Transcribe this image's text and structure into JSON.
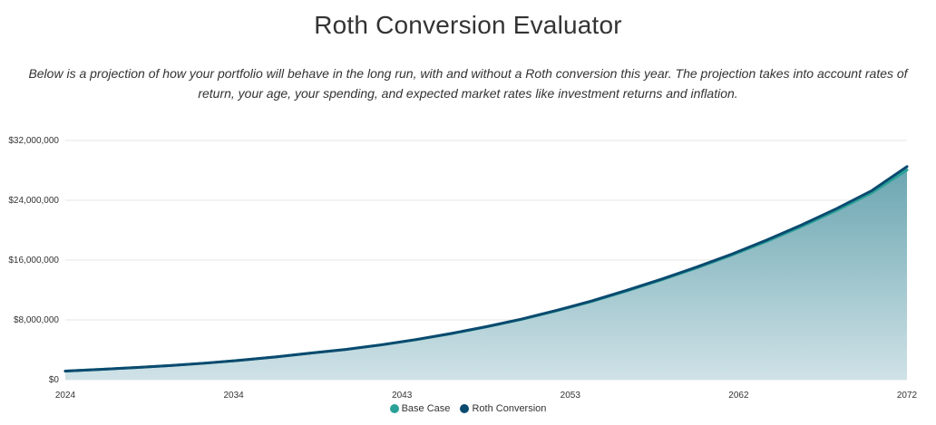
{
  "page": {
    "title": "Roth Conversion Evaluator",
    "description": "Below is a projection of how your portfolio will behave in the long run, with and without a Roth conversion this year. The projection takes into account rates of return, your age, your spending, and expected market rates like investment returns and inflation."
  },
  "colors": {
    "base_case": "#2aa198",
    "roth_conversion": "#0b4a6f",
    "area_top": "#6aa5b0",
    "area_bottom": "#cfe2e7",
    "grid": "#e6e6e6"
  },
  "chart_data": {
    "type": "area",
    "title": "",
    "xlabel": "",
    "ylabel": "",
    "x_tick_labels": [
      "2024",
      "2034",
      "2043",
      "2053",
      "2062",
      "2072"
    ],
    "y_tick_labels": [
      "$0",
      "$8,000,000",
      "$16,000,000",
      "$24,000,000",
      "$32,000,000"
    ],
    "y_ticks": [
      0,
      8000000,
      16000000,
      24000000,
      32000000
    ],
    "xlim": [
      2024,
      2072
    ],
    "ylim": [
      0,
      32000000
    ],
    "grid": "horizontal",
    "legend_position": "bottom",
    "x": [
      2024,
      2026,
      2028,
      2030,
      2032,
      2034,
      2036,
      2038,
      2040,
      2042,
      2044,
      2046,
      2048,
      2050,
      2052,
      2054,
      2056,
      2058,
      2060,
      2062,
      2064,
      2066,
      2068,
      2070,
      2072
    ],
    "series": [
      {
        "name": "Base Case",
        "values": [
          1150000,
          1380000,
          1620000,
          1900000,
          2220000,
          2600000,
          3050000,
          3560000,
          4050000,
          4650000,
          5350000,
          6150000,
          7050000,
          8050000,
          9200000,
          10450000,
          11850000,
          13350000,
          14950000,
          16650000,
          18500000,
          20500000,
          22650000,
          25000000,
          28050000
        ]
      },
      {
        "name": "Roth Conversion",
        "values": [
          1150000,
          1380000,
          1620000,
          1900000,
          2220000,
          2600000,
          3050000,
          3560000,
          4050000,
          4660000,
          5370000,
          6180000,
          7090000,
          8100000,
          9260000,
          10520000,
          11940000,
          13450000,
          15070000,
          16790000,
          18680000,
          20710000,
          22900000,
          25300000,
          28500000
        ]
      }
    ]
  }
}
